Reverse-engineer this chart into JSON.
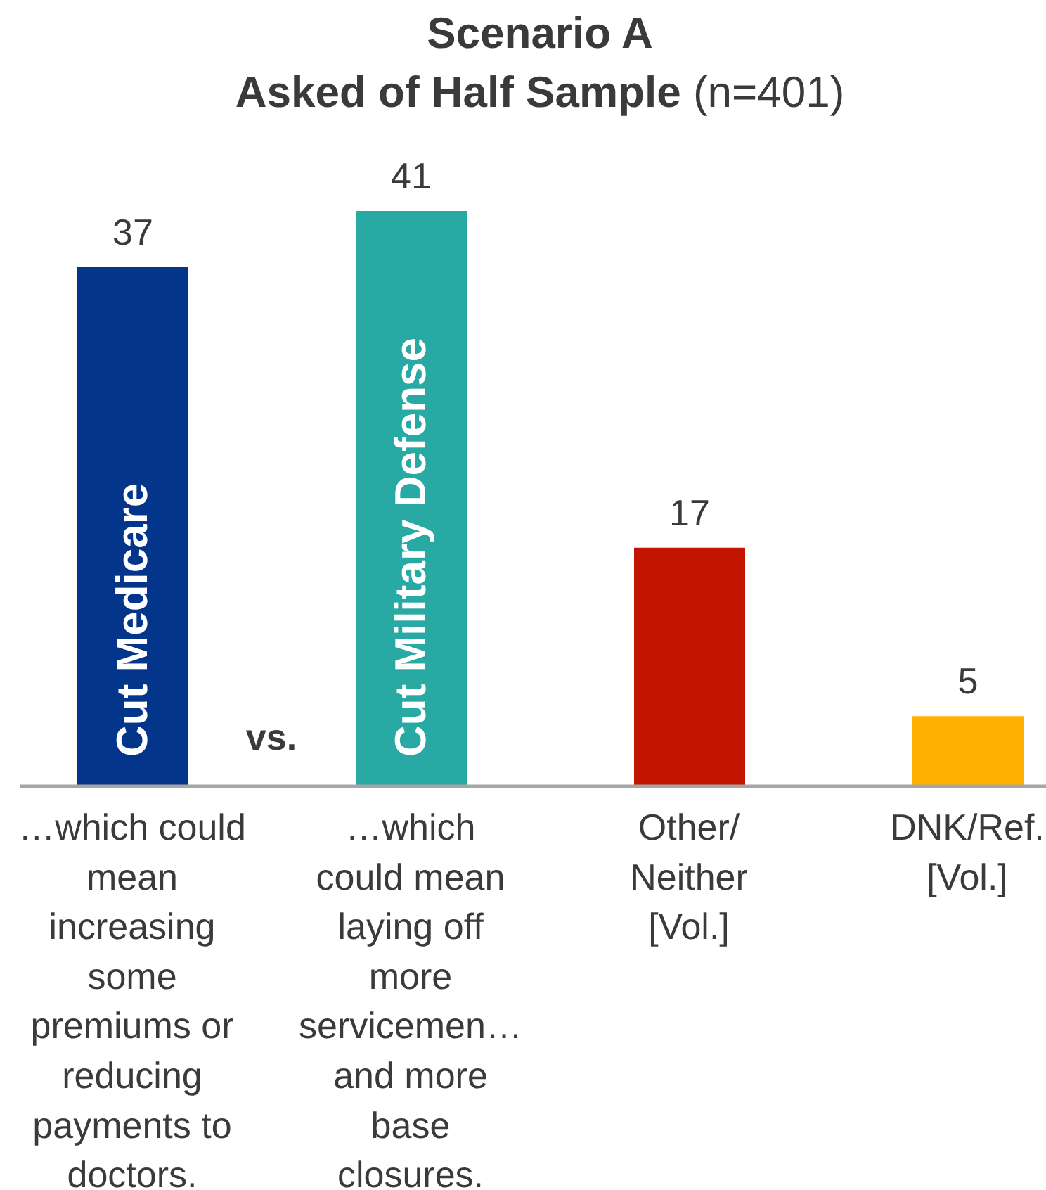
{
  "chart_data": {
    "type": "bar",
    "title": "Scenario A",
    "subtitle": "Asked of Half Sample (n=401)",
    "categories": [
      "…which could mean increasing some premiums or reducing payments to doctors.",
      "…which could mean laying off more servicemen… and more base closures.",
      "Other/ Neither [Vol.]",
      "DNK/Ref. [Vol.]"
    ],
    "values": [
      37,
      41,
      17,
      5
    ],
    "colors": [
      "#03368a",
      "#29a9a4",
      "#c31400",
      "#ffb000"
    ],
    "data_labels": true,
    "annotations": [
      "Cut Medicare",
      "Cut Military Defense",
      "vs."
    ]
  }
}
